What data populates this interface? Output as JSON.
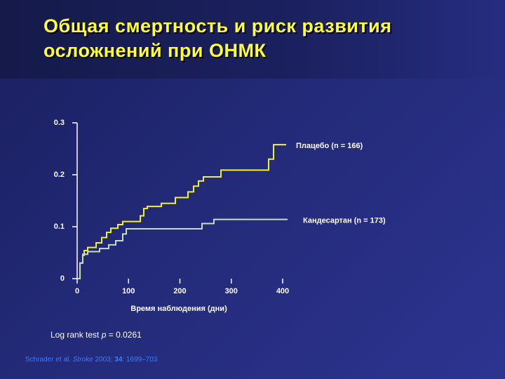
{
  "chart_data": {
    "type": "step",
    "title": [
      "Общая смертность и риск развития",
      "осложнений при ОНМК"
    ],
    "x_label": "Время наблюдения (дни)",
    "xlim": [
      0,
      400
    ],
    "xticks": [
      0,
      100,
      200,
      300,
      400
    ],
    "ylim": [
      0,
      0.3
    ],
    "yticks": [
      0,
      0.1,
      0.2,
      0.3
    ],
    "series": [
      {
        "name": "Плацебо (n = 166)",
        "color": "#f0f030",
        "x": [
          0,
          5.5,
          10.9,
          13.7,
          20.5,
          36.9,
          47.8,
          57.3,
          65.5,
          79.2,
          88.7,
          122.9,
          129.7,
          136.5,
          163.8,
          191.1,
          215.7,
          226.6,
          236.2,
          245.7,
          279.9,
          372.7,
          382.3,
          406.8
        ],
        "values": [
          0,
          0.03,
          0.045,
          0.054,
          0.06,
          0.069,
          0.079,
          0.089,
          0.097,
          0.104,
          0.11,
          0.121,
          0.135,
          0.139,
          0.145,
          0.156,
          0.167,
          0.178,
          0.188,
          0.196,
          0.209,
          0.23,
          0.258,
          0.258
        ]
      },
      {
        "name": "Кандесартан (n = 173)",
        "color": "#c8dcc0",
        "x": [
          0,
          5.5,
          10.9,
          20.5,
          43.7,
          61.4,
          75.1,
          88.7,
          95.6,
          243,
          266.2,
          409.6
        ],
        "values": [
          0,
          0.03,
          0.047,
          0.052,
          0.058,
          0.065,
          0.073,
          0.086,
          0.096,
          0.106,
          0.114,
          0.114
        ]
      }
    ],
    "annotation": [
      "Log rank test ",
      "p",
      " = 0.0261"
    ],
    "citation": [
      "Schrader et al. ",
      "Stroke",
      " 2003; ",
      "34",
      ": 1699–703"
    ]
  }
}
